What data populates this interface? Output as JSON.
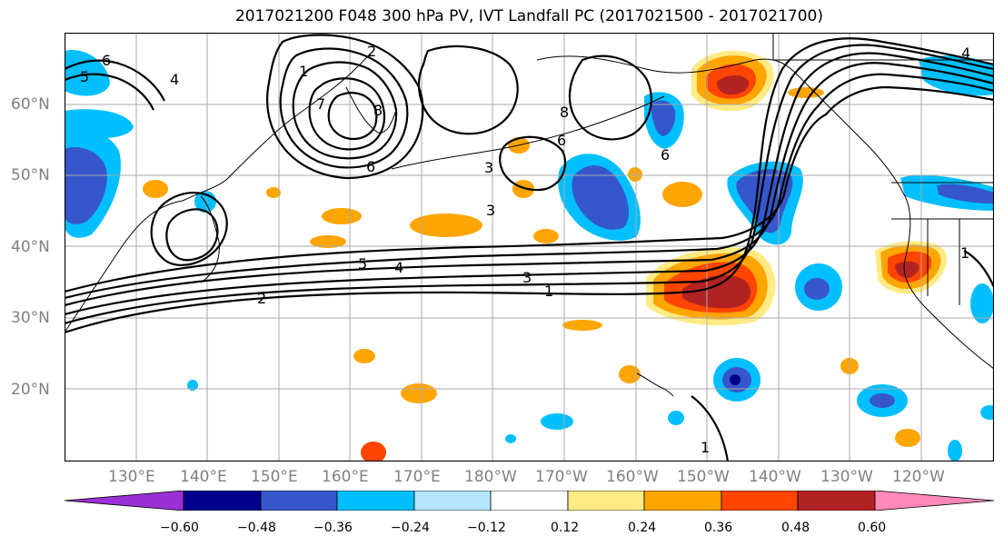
{
  "title": "2017021200 F048 300 hPa PV, IVT Landfall PC (2017021500 - 2017021700)",
  "lat_labels": [
    "60°N",
    "50°N",
    "40°N",
    "30°N",
    "20°N"
  ],
  "lon_labels": [
    "130°E",
    "140°E",
    "150°E",
    "160°E",
    "170°E",
    "180°W",
    "170°W",
    "160°W",
    "150°W",
    "140°W",
    "130°W",
    "120°W"
  ],
  "contour_labels": [
    "6",
    "5",
    "4",
    "2",
    "1",
    "7",
    "8",
    "6",
    "3",
    "3",
    "8",
    "6",
    "6",
    "5",
    "4",
    "3",
    "2",
    "1",
    "1",
    "4",
    "1"
  ],
  "colorbar": {
    "colors": [
      "#9b30d9",
      "#00008b",
      "#3657cc",
      "#00bfff",
      "#b3e5fc",
      "#ffffff",
      "#ffea84",
      "#ffa500",
      "#ff4500",
      "#b22222",
      "#ff88b8"
    ],
    "tick_labels": [
      "−0.60",
      "−0.48",
      "−0.36",
      "−0.24",
      "−0.12",
      "0.12",
      "0.24",
      "0.36",
      "0.48",
      "0.60"
    ]
  },
  "colors": {
    "grid": "#aaaaaa",
    "contour": "#000000",
    "axis_label": "#808080"
  }
}
